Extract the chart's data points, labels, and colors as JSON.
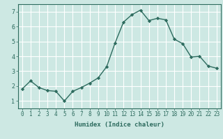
{
  "x": [
    0,
    1,
    2,
    3,
    4,
    5,
    6,
    7,
    8,
    9,
    10,
    11,
    12,
    13,
    14,
    15,
    16,
    17,
    18,
    19,
    20,
    21,
    22,
    23
  ],
  "y": [
    1.8,
    2.35,
    1.9,
    1.7,
    1.65,
    1.0,
    1.65,
    1.9,
    2.2,
    2.55,
    3.3,
    4.9,
    6.3,
    6.8,
    7.1,
    6.4,
    6.55,
    6.45,
    5.15,
    4.85,
    3.95,
    4.0,
    3.35,
    3.2
  ],
  "line_color": "#2d6b5e",
  "marker": "D",
  "marker_size": 2.2,
  "line_width": 1.0,
  "xlabel": "Humidex (Indice chaleur)",
  "xlim": [
    -0.5,
    23.5
  ],
  "ylim": [
    0.5,
    7.5
  ],
  "yticks": [
    1,
    2,
    3,
    4,
    5,
    6,
    7
  ],
  "xticks": [
    0,
    1,
    2,
    3,
    4,
    5,
    6,
    7,
    8,
    9,
    10,
    11,
    12,
    13,
    14,
    15,
    16,
    17,
    18,
    19,
    20,
    21,
    22,
    23
  ],
  "bg_color": "#cde8e3",
  "grid_color": "#ffffff",
  "tick_color": "#2d6b5e",
  "xlabel_color": "#2d6b5e",
  "tick_fontsize": 5.5,
  "xlabel_fontsize": 6.5
}
